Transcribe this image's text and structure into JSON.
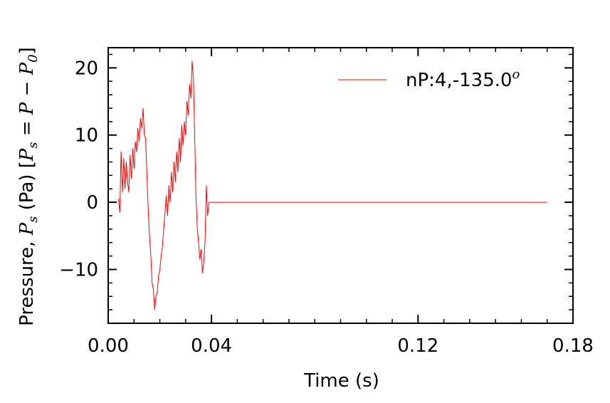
{
  "chart_data": {
    "type": "line",
    "xlabel": "Time (s)",
    "ylabel": {
      "prefix": "Pressure, ",
      "symbol": "P",
      "subscript": "s",
      "unit": " (Pa) [",
      "eq_symbol": "P",
      "eq_subscript": "s",
      "eq_rest": " = P − P",
      "eq_sub0": "0",
      "close": "]"
    },
    "xlim": [
      0.0,
      0.18
    ],
    "ylim": [
      -18,
      23
    ],
    "xticks": [
      0.0,
      0.04,
      0.12,
      0.18
    ],
    "xtick_labels": [
      "0.00",
      "0.04",
      "0.12",
      "0.18"
    ],
    "yticks": [
      -10,
      0,
      10,
      20
    ],
    "ytick_labels": [
      "−10",
      "0",
      "10",
      "20"
    ],
    "legend": {
      "label": "nP:4,-135.0",
      "superscript": "o",
      "placement": "top-right"
    },
    "series": [
      {
        "name": "nP:4,-135.0°",
        "color": "#ff0000",
        "x": [
          0.004,
          0.0045,
          0.005,
          0.0055,
          0.006,
          0.0065,
          0.007,
          0.0075,
          0.008,
          0.0085,
          0.009,
          0.0095,
          0.01,
          0.0105,
          0.011,
          0.0115,
          0.012,
          0.0125,
          0.013,
          0.0135,
          0.014,
          0.0145,
          0.015,
          0.0155,
          0.016,
          0.0165,
          0.017,
          0.0175,
          0.018,
          0.0185,
          0.019,
          0.0195,
          0.02,
          0.0205,
          0.021,
          0.0215,
          0.022,
          0.0225,
          0.023,
          0.0235,
          0.024,
          0.0245,
          0.025,
          0.0255,
          0.026,
          0.0265,
          0.027,
          0.0275,
          0.028,
          0.0285,
          0.029,
          0.0295,
          0.03,
          0.0305,
          0.031,
          0.0315,
          0.032,
          0.0325,
          0.033,
          0.0335,
          0.034,
          0.0345,
          0.035,
          0.0355,
          0.036,
          0.0365,
          0.037,
          0.0375,
          0.038,
          0.0385,
          0.039,
          0.0395,
          0.04,
          0.045,
          0.06,
          0.08,
          0.1,
          0.12,
          0.14,
          0.16,
          0.17
        ],
        "y": [
          0.5,
          -1.5,
          7.5,
          1.5,
          6.5,
          2.0,
          6.0,
          3.0,
          1.5,
          7.0,
          3.5,
          8.0,
          5.0,
          9.0,
          7.5,
          11.0,
          9.0,
          12.5,
          11.0,
          14.0,
          10.0,
          9.5,
          4.0,
          -1.0,
          -5.0,
          -8.0,
          -12.0,
          -13.0,
          -16.0,
          -14.0,
          -13.5,
          -11.0,
          -10.0,
          -8.0,
          -6.5,
          -4.0,
          -1.5,
          1.0,
          -2.0,
          2.5,
          0.0,
          4.5,
          1.5,
          6.0,
          3.0,
          7.5,
          4.5,
          9.5,
          6.0,
          11.5,
          8.5,
          12.0,
          10.0,
          15.0,
          13.0,
          17.5,
          15.5,
          21.0,
          18.5,
          10.0,
          1.0,
          -4.0,
          -6.0,
          -8.5,
          -7.0,
          -10.5,
          -9.0,
          -6.0,
          2.5,
          -2.0,
          0.0,
          0.0,
          0.0,
          0.0,
          0.0,
          0.0,
          0.0,
          0.0,
          0.0,
          0.0,
          0.0
        ]
      }
    ]
  }
}
